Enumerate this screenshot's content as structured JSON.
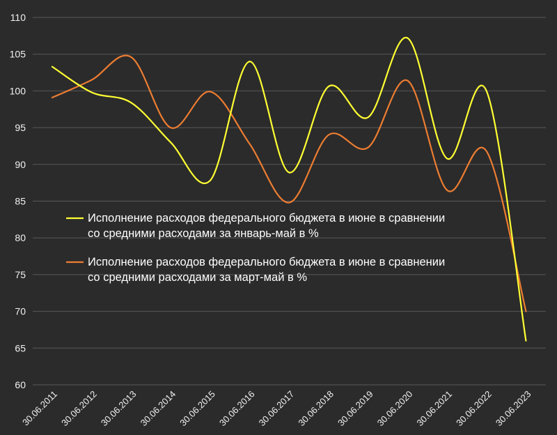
{
  "chart_data": {
    "type": "line",
    "title": "",
    "xlabel": "",
    "ylabel": "",
    "ylim": [
      60,
      110
    ],
    "yticks": [
      60,
      65,
      70,
      75,
      80,
      85,
      90,
      95,
      100,
      105,
      110
    ],
    "grid": true,
    "legend_position": "center-left",
    "categories": [
      "30.06.2011",
      "30.06.2012",
      "30.06.2013",
      "30.06.2014",
      "30.06.2015",
      "30.06.2016",
      "30.06.2017",
      "30.06.2018",
      "30.06.2019",
      "30.06.2020",
      "30.06.2021",
      "30.06.2022",
      "30.06.2023"
    ],
    "series": [
      {
        "name": "Исполнение расходов федерального бюджета в июне в сравнении со средними расходами за январь-май в %",
        "legend_lines": [
          "Исполнение расходов федерального бюджета в июне в сравнении",
          "со средними расходами за январь-май в %"
        ],
        "color": "#ffff33",
        "values": [
          103.3,
          99.8,
          98.4,
          93.0,
          87.8,
          104.0,
          88.9,
          100.6,
          96.4,
          107.2,
          90.8,
          100.0,
          66.0
        ]
      },
      {
        "name": "Исполнение расходов федерального бюджета в июне в сравнении со средними расходами за март-май в %",
        "legend_lines": [
          "Исполнение расходов федерального бюджета в июне в сравнении",
          "со средними расходами за март-май в %"
        ],
        "color": "#ed7d31",
        "values": [
          99.1,
          101.5,
          104.6,
          95.0,
          99.9,
          92.8,
          84.8,
          94.0,
          92.3,
          101.4,
          86.5,
          91.8,
          70.0
        ]
      }
    ]
  }
}
